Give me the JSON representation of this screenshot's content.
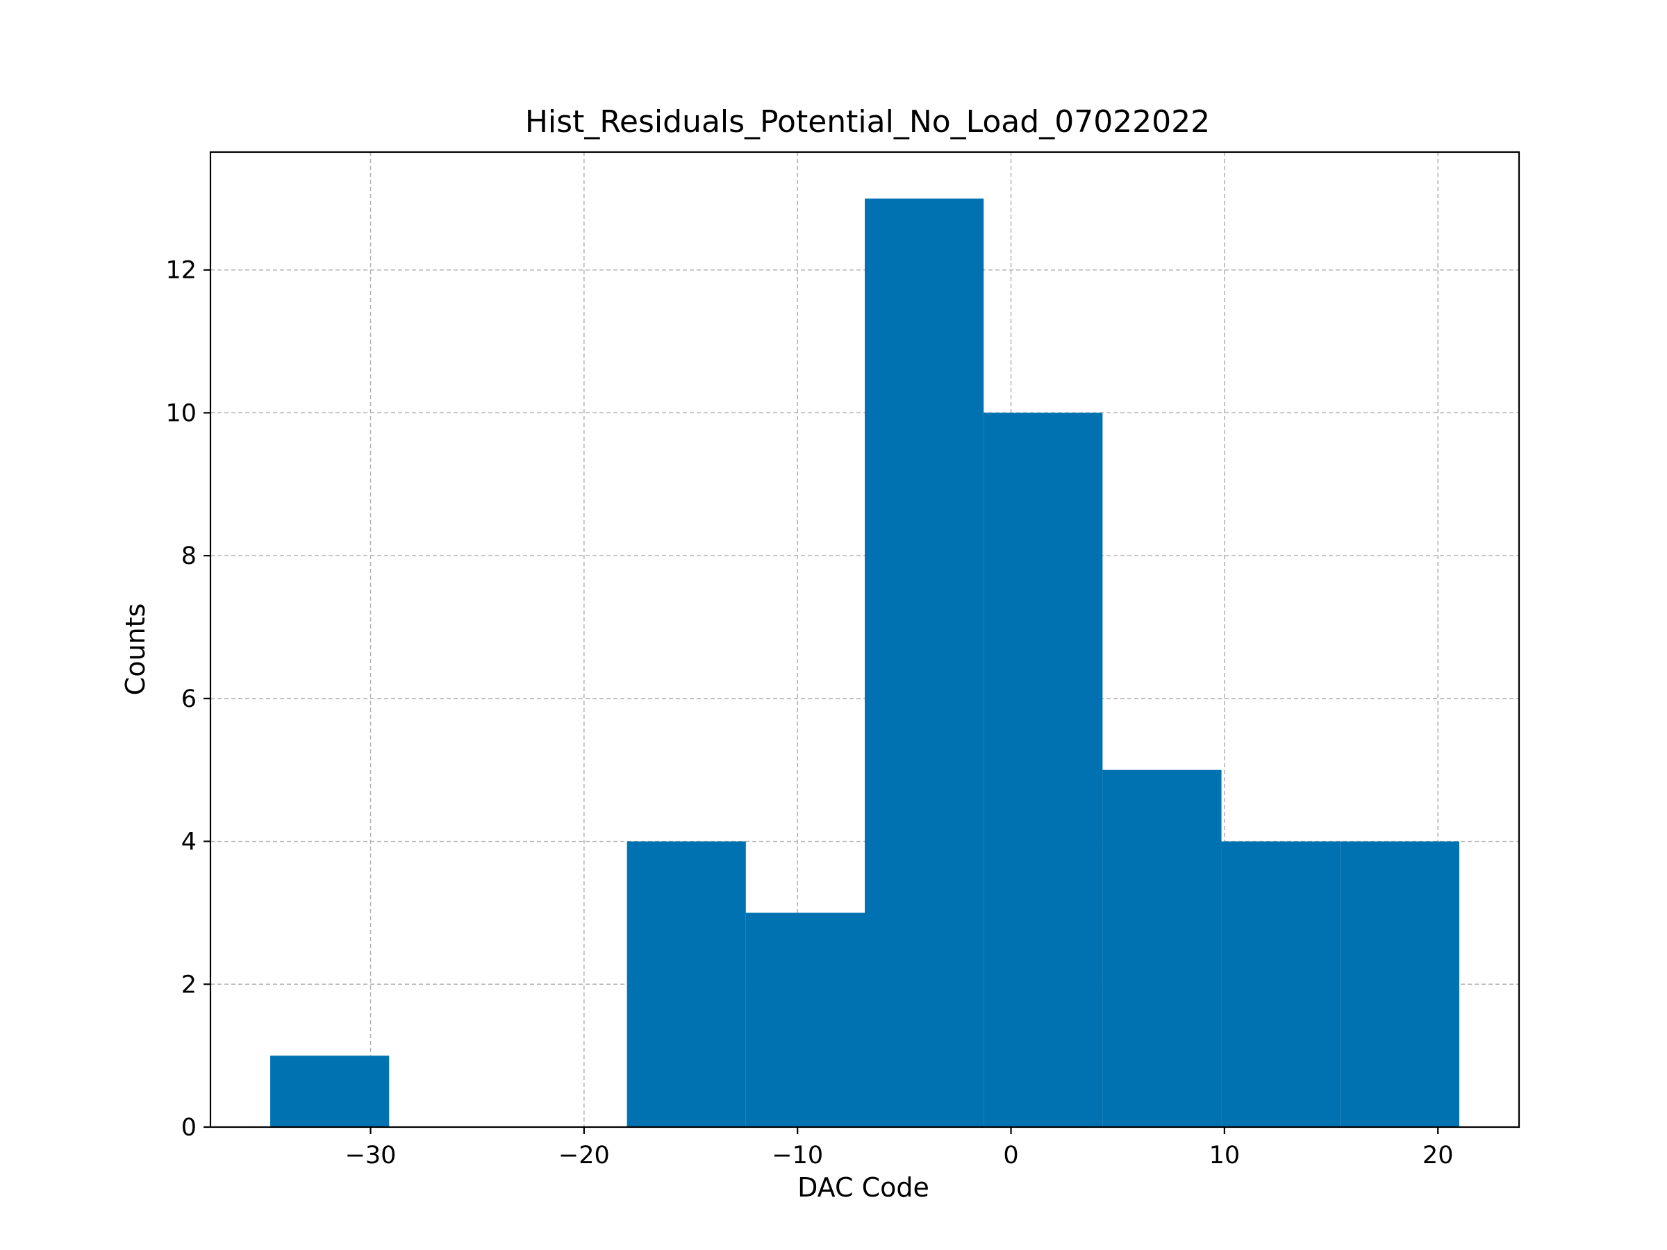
{
  "chart_data": {
    "type": "bar",
    "title": "Hist_Residuals_Potential_No_Load_07022022",
    "xlabel": "DAC Code",
    "ylabel": "Counts",
    "bar_color": "#0072b2",
    "bin_edges": [
      -34.7,
      -29.13,
      -23.56,
      -17.99,
      -12.42,
      -6.85,
      -1.28,
      4.29,
      9.86,
      15.43,
      21.0
    ],
    "values": [
      1,
      0,
      0,
      4,
      3,
      13,
      10,
      5,
      4,
      4
    ],
    "xlim": [
      -37.5,
      23.8
    ],
    "ylim": [
      0,
      13.65
    ],
    "x_ticks": [
      -30,
      -20,
      -10,
      0,
      10,
      20
    ],
    "x_tick_labels": [
      "−30",
      "−20",
      "−10",
      "0",
      "10",
      "20"
    ],
    "y_ticks": [
      0,
      2,
      4,
      6,
      8,
      10,
      12
    ],
    "y_tick_labels": [
      "0",
      "2",
      "4",
      "6",
      "8",
      "10",
      "12"
    ],
    "grid": true
  }
}
